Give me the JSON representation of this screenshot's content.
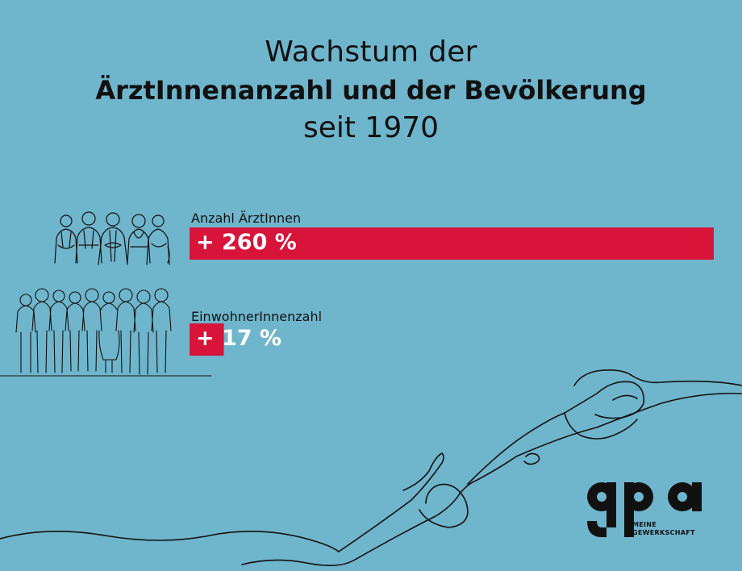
{
  "chart_data": {
    "type": "bar",
    "orientation": "horizontal",
    "title": "Wachstum der ÄrztInnenanzahl und der Bevölkerung seit 1970",
    "title_lines": [
      "Wachstum der",
      "ÄrztInnenanzahl und der Bevölkerung",
      "seit 1970"
    ],
    "categories": [
      "Anzahl ÄrztInnen",
      "EinwohnerInnenzahl"
    ],
    "values": [
      260,
      17
    ],
    "value_labels": [
      "+ 260 %",
      "+ 17 %"
    ],
    "unit": "%",
    "xlim": [
      0,
      260
    ],
    "grid": false,
    "legend": "none"
  },
  "colors": {
    "background": "#6fb5cc",
    "bar": "#d8143a",
    "text": "#111111",
    "line_art": "#111111"
  },
  "illustrations": {
    "doctors": "doctors-group-line-art",
    "crowd": "crowd-line-art",
    "swimmer": "swimmer-line-art"
  },
  "logo": {
    "name": "gpa",
    "tagline_line1": "MEINE",
    "tagline_line2": "GEWERKSCHAFT"
  }
}
